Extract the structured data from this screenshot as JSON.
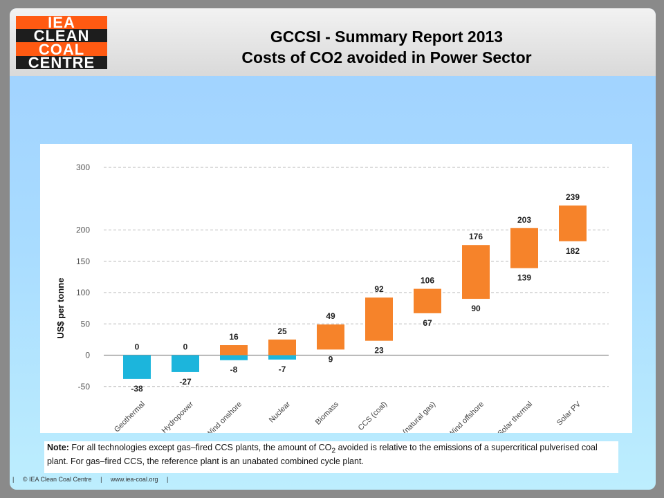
{
  "header": {
    "logo_lines": [
      "IEA",
      "CLEAN",
      "COAL",
      "CENTRE"
    ],
    "title_line1": "GCCSI - Summary Report 2013",
    "title_line2": "Costs of CO2 avoided in Power Sector"
  },
  "colors": {
    "negative": "#1cb5dc",
    "positive": "#f6832a",
    "grid": "#b8b8b8"
  },
  "chart_data": {
    "type": "bar",
    "title": "",
    "xlabel": "",
    "ylabel": "US$ per tonne",
    "ylim": [
      -50,
      300
    ],
    "yticks": [
      -50,
      0,
      50,
      100,
      150,
      200,
      300
    ],
    "grid": true,
    "categories": [
      "Geothermal",
      "Hydropower",
      "Wind onshore",
      "Nuclear",
      "Biomass",
      "CCS (coal)",
      "CCS (natural gas)",
      "Wind offshore",
      "Solar thermal",
      "Solar PV"
    ],
    "low": [
      -38,
      -27,
      -8,
      -7,
      9,
      23,
      67,
      90,
      139,
      182
    ],
    "high": [
      0,
      0,
      16,
      25,
      49,
      92,
      106,
      176,
      203,
      239
    ]
  },
  "note": {
    "label": "Note:",
    "text_a": " For all technologies except gas–fired CCS plants, the amount of CO",
    "sub": "2",
    "text_b": " avoided is relative to the emissions of a supercritical pulverised coal plant. For gas–fired CCS, the reference plant is an unabated combined cycle plant."
  },
  "footer": {
    "sep": "|",
    "copyright": "© IEA Clean Coal Centre",
    "website": "www.iea-coal.org"
  }
}
